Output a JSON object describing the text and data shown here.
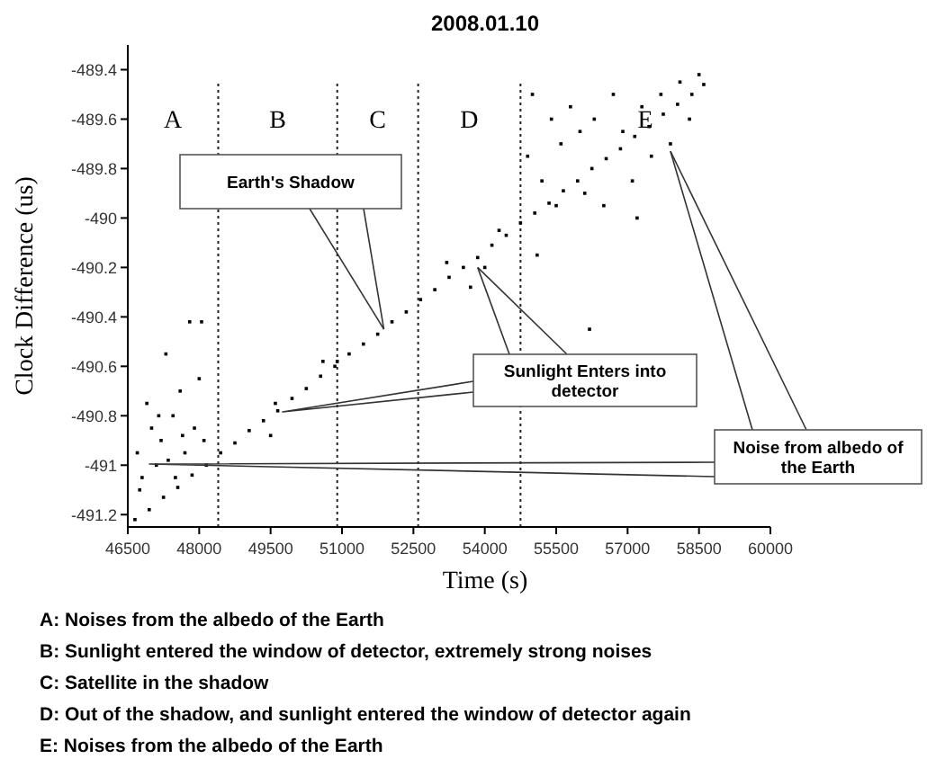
{
  "chart_data": {
    "type": "scatter",
    "title": "2008.01.10",
    "xlabel": "Time (s)",
    "ylabel": "Clock Difference (us)",
    "xlim": [
      46500,
      60000
    ],
    "xticks": [
      46500,
      48000,
      49500,
      51000,
      52500,
      54000,
      55500,
      57000,
      58500,
      60000
    ],
    "ylim": [
      -491.25,
      -489.3
    ],
    "yticks": [
      -491.2,
      -491.0,
      -490.8,
      -490.6,
      -490.4,
      -490.2,
      -490.0,
      -489.8,
      -489.6,
      -489.4
    ],
    "marker": "square",
    "grid": false,
    "legend": false,
    "series": [
      {
        "color": "#000000",
        "x": [
          46650,
          46950,
          47250,
          47550,
          47850,
          48150,
          48450,
          48750,
          49050,
          49350,
          49650,
          49950,
          50250,
          50550,
          50850,
          51150,
          51450,
          51750,
          52050,
          52350,
          52650,
          52950,
          53250,
          53550,
          53850,
          54150,
          54450,
          54750,
          55050,
          55350,
          55650,
          55950,
          56250,
          56550,
          56850,
          57150,
          57450,
          57750,
          58050,
          58350,
          58600,
          46700,
          46800,
          46900,
          47000,
          47100,
          47200,
          47300,
          47450,
          47600,
          47700,
          47800,
          47900,
          48000,
          48050,
          48100,
          47500,
          47150,
          46750,
          47350,
          47650,
          49500,
          49600,
          50600,
          50900,
          53200,
          53700,
          54300,
          54000,
          54900,
          55000,
          55200,
          55400,
          55500,
          55600,
          55800,
          56000,
          56100,
          56300,
          56500,
          56700,
          56900,
          57100,
          57300,
          57500,
          57700,
          57900,
          58100,
          58300,
          58500,
          57200,
          55100,
          56200
        ],
        "values": [
          -491.22,
          -491.18,
          -491.13,
          -491.09,
          -491.04,
          -491.0,
          -490.95,
          -490.91,
          -490.86,
          -490.82,
          -490.78,
          -490.73,
          -490.69,
          -490.64,
          -490.6,
          -490.55,
          -490.51,
          -490.47,
          -490.42,
          -490.38,
          -490.33,
          -490.29,
          -490.24,
          -490.2,
          -490.16,
          -490.11,
          -490.07,
          -490.02,
          -489.98,
          -489.94,
          -489.89,
          -489.85,
          -489.8,
          -489.76,
          -489.72,
          -489.67,
          -489.63,
          -489.58,
          -489.54,
          -489.5,
          -489.46,
          -490.95,
          -491.05,
          -490.75,
          -490.85,
          -491.0,
          -490.9,
          -490.55,
          -490.8,
          -490.7,
          -490.95,
          -490.42,
          -490.85,
          -490.65,
          -490.42,
          -490.9,
          -491.05,
          -490.8,
          -491.1,
          -490.98,
          -490.88,
          -490.88,
          -490.75,
          -490.58,
          -490.58,
          -490.18,
          -490.28,
          -490.05,
          -490.2,
          -489.75,
          -489.5,
          -489.85,
          -489.6,
          -489.95,
          -489.7,
          -489.55,
          -489.65,
          -489.9,
          -489.6,
          -489.95,
          -489.5,
          -489.65,
          -489.85,
          -489.55,
          -489.75,
          -489.5,
          -489.7,
          -489.45,
          -489.6,
          -489.42,
          -490.0,
          -490.15,
          -490.45
        ]
      }
    ],
    "ref_lines": [
      {
        "axis": "x",
        "value": 48400,
        "line_style": "dotted"
      },
      {
        "axis": "x",
        "value": 50900,
        "line_style": "dotted"
      },
      {
        "axis": "x",
        "value": 52600,
        "line_style": "dotted"
      },
      {
        "axis": "x",
        "value": 54750,
        "line_style": "dotted"
      }
    ],
    "annotations": [
      "A",
      "B",
      "C",
      "D",
      "E",
      {
        "text": "Earth's Shadow",
        "x": 51880,
        "y": -490.45
      },
      {
        "text": "Sunlight Enters into detector",
        "x": 53850,
        "y": -490.2
      },
      {
        "text": "Noise from albedo of the Earth",
        "x": 57900,
        "y": -489.73
      },
      "A: Noises from the albedo of the Earth",
      "B: Sunlight entered the window of detector, extremely strong noises",
      "C: Satellite in the shadow",
      "D: Out of the shadow, and sunlight entered the window of detector again",
      "E: Noises from the albedo of the Earth"
    ]
  }
}
